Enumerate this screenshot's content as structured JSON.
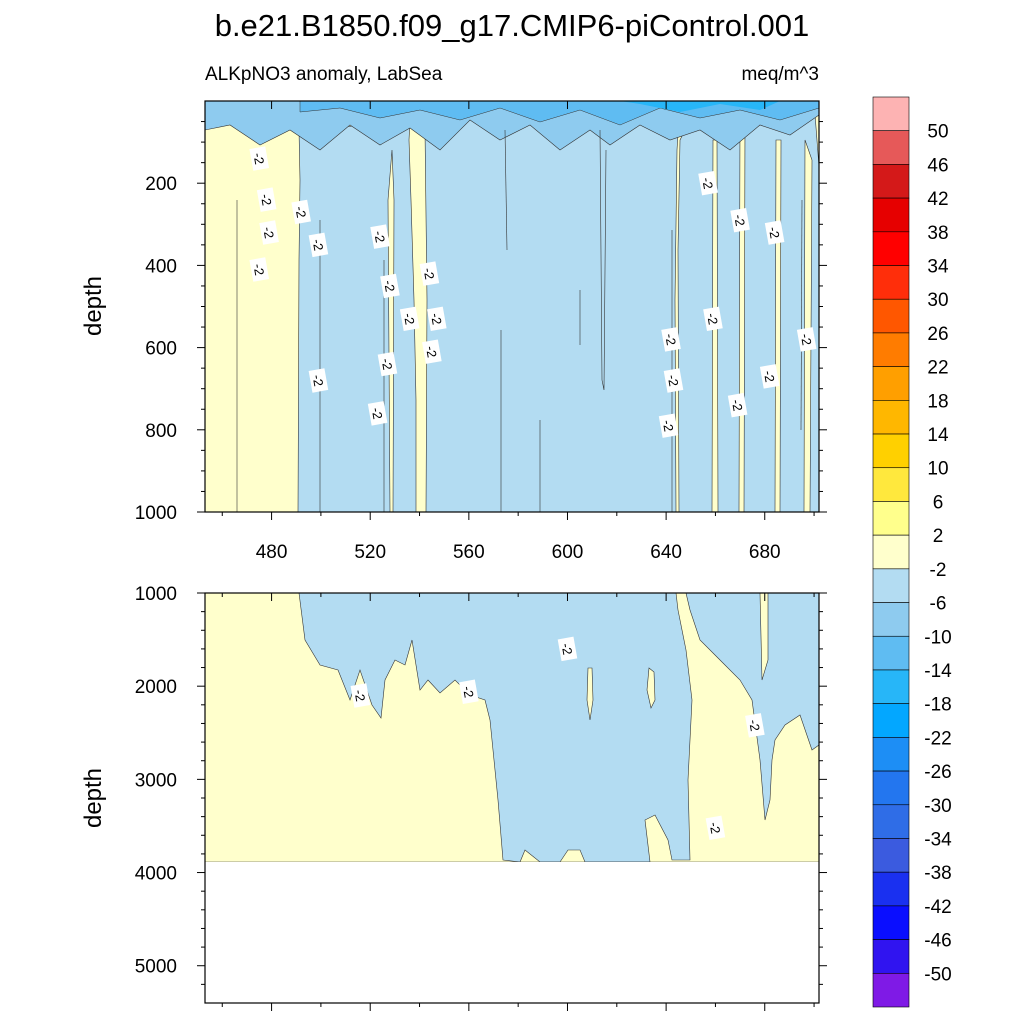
{
  "title": "b.e21.B1850.f09_g17.CMIP6-piControl.001",
  "subtitle_left": "ALKpNO3 anomaly, LabSea",
  "subtitle_right": "meq/m^3",
  "chart_data": [
    {
      "type": "contour",
      "panel": "upper",
      "ylabel": "depth",
      "xlabel": "",
      "xlim": [
        453,
        702
      ],
      "ylim": [
        1000,
        0
      ],
      "y_inverted": true,
      "x_ticks": [
        480,
        520,
        560,
        600,
        640,
        680
      ],
      "y_ticks": [
        200,
        400,
        600,
        800,
        1000
      ],
      "anomaly_regions": [
        {
          "level": "-2 to 2",
          "x_range": [
            453,
            490
          ],
          "color": "#ffffcc"
        },
        {
          "level": "-6 to -2",
          "x_range": [
            490,
            537
          ],
          "color": "#b3dcf2"
        },
        {
          "level": "-2 to 2",
          "x_range": [
            537,
            541
          ],
          "color": "#ffffcc"
        },
        {
          "level": "-6 to -2",
          "x_range": [
            541,
            642
          ],
          "color": "#b3dcf2"
        },
        {
          "level": "-2 to 2",
          "x_range": [
            642,
            657
          ],
          "color": "#ffffcc"
        },
        {
          "level": "-6 to -2",
          "x_range": [
            657,
            668
          ],
          "color": "#b3dcf2"
        },
        {
          "level": "-2 to 2",
          "x_range": [
            668,
            671
          ],
          "color": "#ffffcc"
        },
        {
          "level": "-6 to -2",
          "x_range": [
            671,
            702
          ],
          "color": "#b3dcf2"
        }
      ],
      "contour_labels": [
        {
          "text": "-2",
          "x": 475,
          "depth": 140
        },
        {
          "text": "-2",
          "x": 478,
          "depth": 240
        },
        {
          "text": "-2",
          "x": 479,
          "depth": 320
        },
        {
          "text": "-2",
          "x": 475,
          "depth": 410
        },
        {
          "text": "-2",
          "x": 492,
          "depth": 270
        },
        {
          "text": "-2",
          "x": 499,
          "depth": 350
        },
        {
          "text": "-2",
          "x": 499,
          "depth": 680
        },
        {
          "text": "-2",
          "x": 524,
          "depth": 330
        },
        {
          "text": "-2",
          "x": 528,
          "depth": 450
        },
        {
          "text": "-2",
          "x": 527,
          "depth": 640
        },
        {
          "text": "-2",
          "x": 523,
          "depth": 760
        },
        {
          "text": "-2",
          "x": 536,
          "depth": 530
        },
        {
          "text": "-2",
          "x": 544,
          "depth": 420
        },
        {
          "text": "-2",
          "x": 547,
          "depth": 530
        },
        {
          "text": "-2",
          "x": 545,
          "depth": 610
        },
        {
          "text": "-2",
          "x": 642,
          "depth": 580
        },
        {
          "text": "-2",
          "x": 643,
          "depth": 680
        },
        {
          "text": "-2",
          "x": 641,
          "depth": 790
        },
        {
          "text": "-2",
          "x": 657,
          "depth": 200
        },
        {
          "text": "-2",
          "x": 659,
          "depth": 530
        },
        {
          "text": "-2",
          "x": 670,
          "depth": 290
        },
        {
          "text": "-2",
          "x": 669,
          "depth": 740
        },
        {
          "text": "-2",
          "x": 684,
          "depth": 320
        },
        {
          "text": "-2",
          "x": 682,
          "depth": 670
        },
        {
          "text": "-2",
          "x": 697,
          "depth": 580
        }
      ]
    },
    {
      "type": "contour",
      "panel": "lower",
      "ylabel": "depth",
      "xlabel": "",
      "xlim": [
        453,
        702
      ],
      "ylim": [
        5400,
        1000
      ],
      "y_inverted": true,
      "y_ticks": [
        1000,
        2000,
        3000,
        4000,
        5000
      ],
      "data_bottom_depth": 3870,
      "contour_labels": [
        {
          "text": "-2",
          "x": 516,
          "depth": 2100
        },
        {
          "text": "-2",
          "x": 560,
          "depth": 2060
        },
        {
          "text": "-2",
          "x": 600,
          "depth": 1600
        },
        {
          "text": "-2",
          "x": 676,
          "depth": 2420
        },
        {
          "text": "-2",
          "x": 660,
          "depth": 3520
        }
      ]
    }
  ],
  "colorbar": {
    "labels": [
      "50",
      "46",
      "42",
      "38",
      "34",
      "30",
      "26",
      "22",
      "18",
      "14",
      "10",
      "6",
      "2",
      "-2",
      "-6",
      "-10",
      "-14",
      "-18",
      "-22",
      "-26",
      "-30",
      "-34",
      "-38",
      "-42",
      "-46",
      "-50"
    ],
    "colors": [
      "#fdb3b3",
      "#e65959",
      "#d41919",
      "#e60000",
      "#ff0000",
      "#ff2e0a",
      "#ff5700",
      "#ff7c00",
      "#ff9f00",
      "#ffb700",
      "#ffd000",
      "#ffe83d",
      "#ffff8c",
      "#ffffcc",
      "#b3dcf2",
      "#8ecbef",
      "#5fbcf2",
      "#27b6f8",
      "#03a7ff",
      "#1d8ef5",
      "#2376ef",
      "#2f6de7",
      "#3b5bdf",
      "#1a30f0",
      "#0a0eff",
      "#3014f0",
      "#7f1ae6"
    ]
  }
}
